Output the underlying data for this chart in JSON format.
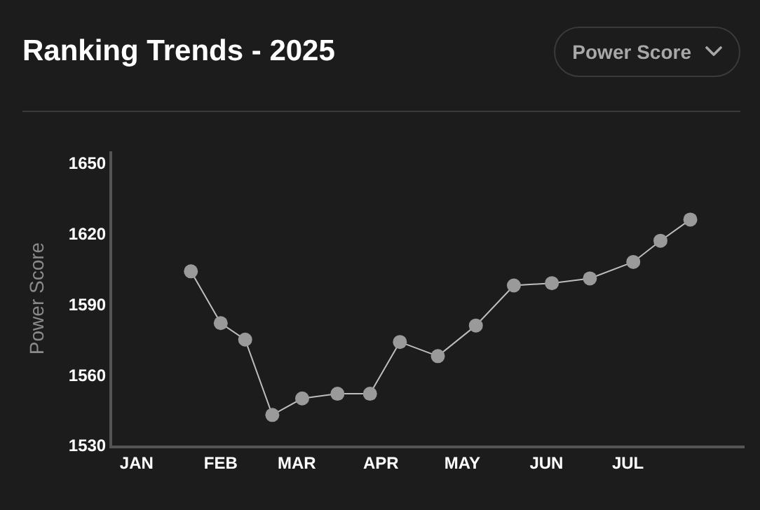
{
  "chart_data": {
    "type": "line",
    "title": "Ranking Trends - 2025",
    "ylabel": "Power Score",
    "annotations": [
      "Power Score"
    ],
    "x": [
      "2025-01-21",
      "2025-02-01",
      "2025-02-10",
      "2025-02-20",
      "2025-03-03",
      "2025-03-16",
      "2025-03-28",
      "2025-04-08",
      "2025-04-22",
      "2025-05-06",
      "2025-05-20",
      "2025-06-03",
      "2025-06-17",
      "2025-07-03",
      "2025-07-13",
      "2025-07-24"
    ],
    "series": [
      {
        "color": "#9a9a9a",
        "values": [
          1604,
          1582,
          1575,
          1543,
          1550,
          1552,
          1552,
          1574,
          1568,
          1581,
          1598,
          1599,
          1601,
          1608,
          1617,
          1626
        ]
      }
    ],
    "xlim": [
      "2024-12-23",
      "2025-08-13"
    ],
    "xticks": [
      {
        "value": "2025-01-01",
        "label": "JAN"
      },
      {
        "value": "2025-02-01",
        "label": "FEB"
      },
      {
        "value": "2025-03-01",
        "label": "MAR"
      },
      {
        "value": "2025-04-01",
        "label": "APR"
      },
      {
        "value": "2025-05-01",
        "label": "MAY"
      },
      {
        "value": "2025-06-01",
        "label": "JUN"
      },
      {
        "value": "2025-07-01",
        "label": "JUL"
      }
    ],
    "ylim": [
      1530,
      1655
    ],
    "yticks": [
      1530,
      1560,
      1590,
      1620,
      1650
    ],
    "grid": false,
    "marker": "circle",
    "line_style": "solid"
  }
}
